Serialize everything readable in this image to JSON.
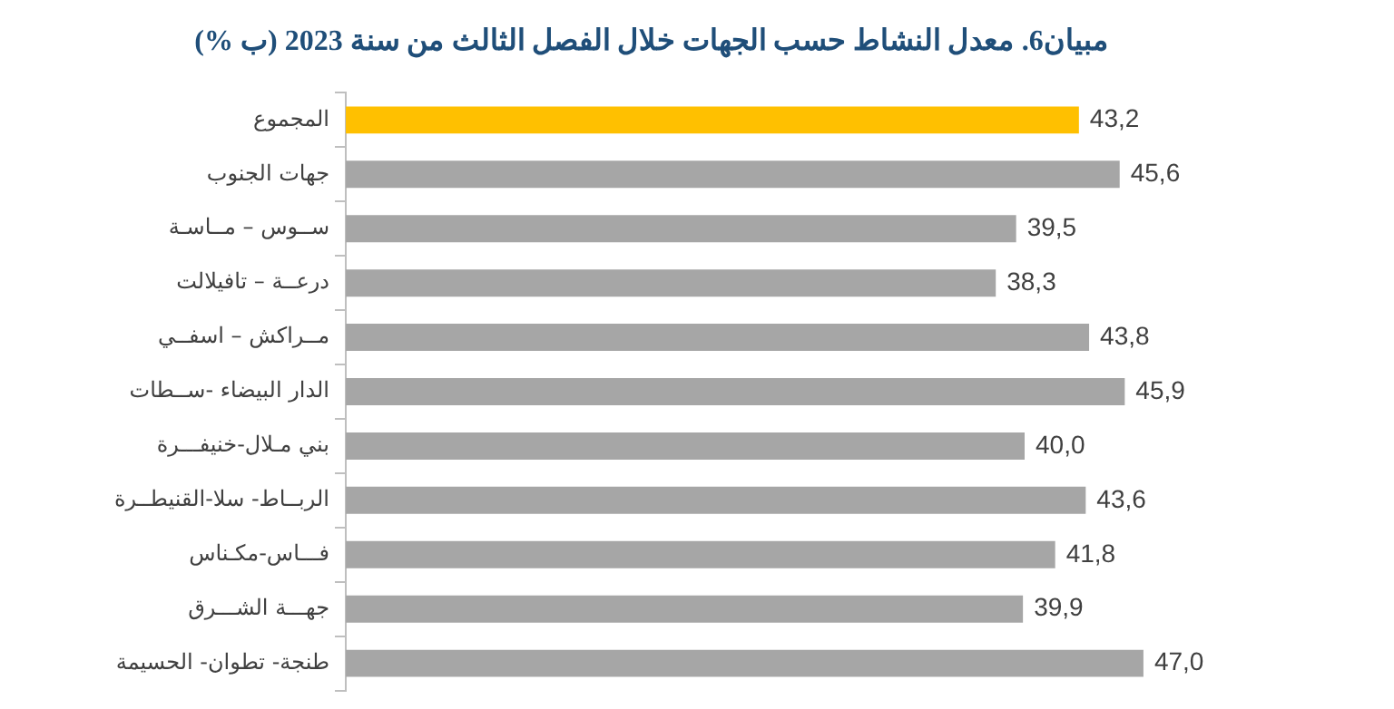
{
  "chart_data": {
    "type": "bar",
    "orientation": "horizontal",
    "title": "مبيان6. معدل النشاط حسب الجهات خلال الفصل الثالث من سنة 2023 (ب %)",
    "categories": [
      "المجموع",
      "جهات الجنوب",
      "ســوس – مــاسـة",
      "درعــة – تافيلالت",
      "مــراكش – اسفــي",
      "الدار البيضاء -ســطات",
      "بني مـلال-خنيفـــرة",
      "الربــاط- سلا-القنيطــرة",
      "فـــاس-مكـناس",
      "جهـــة الشـــرق",
      "طنجة- تطوان- الحسيمة"
    ],
    "values": [
      43.2,
      45.6,
      39.5,
      38.3,
      43.8,
      45.9,
      40.0,
      43.6,
      41.8,
      39.9,
      47.0
    ],
    "colors": [
      "#ffc000",
      "#a6a6a6",
      "#a6a6a6",
      "#a6a6a6",
      "#a6a6a6",
      "#a6a6a6",
      "#a6a6a6",
      "#a6a6a6",
      "#a6a6a6",
      "#a6a6a6",
      "#a6a6a6"
    ],
    "value_labels": [
      "43,2",
      "45,6",
      "39,5",
      "38,3",
      "43,8",
      "45,9",
      "40,0",
      "43,6",
      "41,8",
      "39,9",
      "47,0"
    ],
    "tick_labels": "y",
    "legend": false
  }
}
